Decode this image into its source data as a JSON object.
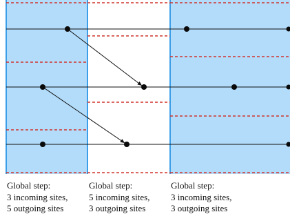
{
  "colors": {
    "panel_fill": "#b3dcfa",
    "panel_border": "#3a9ee8",
    "dashed_line": "#d0342c",
    "site_line": "#111111",
    "site_dot": "#0a0a0a"
  },
  "panels": [
    {
      "name": "step-1",
      "shaded": true,
      "caption": [
        "Global step:",
        "3 incoming sites,",
        "5 outgoing sites"
      ],
      "incoming_sites": 3,
      "outgoing_sites": 5
    },
    {
      "name": "step-2",
      "shaded": false,
      "caption": [
        "Global step:",
        "5 incoming sites,",
        "3 outgoing sites"
      ],
      "incoming_sites": 5,
      "outgoing_sites": 3
    },
    {
      "name": "step-3",
      "shaded": true,
      "caption": [
        "Global step:",
        "3 incoming sites,",
        "3 outgoing sites"
      ],
      "incoming_sites": 3,
      "outgoing_sites": 3
    }
  ]
}
